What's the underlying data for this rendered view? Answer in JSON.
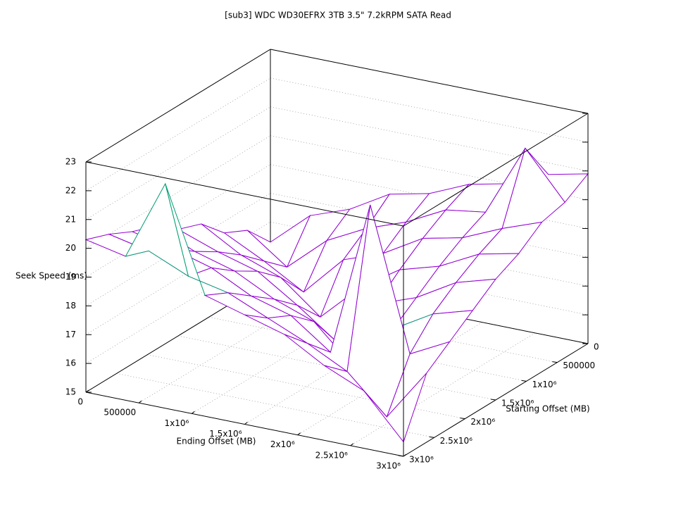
{
  "chart_data": {
    "type": "surface3d",
    "title": "[sub3] WDC WD30EFRX 3TB 3.5\" 7.2kRPM SATA Read",
    "xlabel": "Ending Offset (MB)",
    "ylabel": "Starting Offset (MB)",
    "zlabel": "Seek Speed (ms)",
    "x": [
      0,
      375000,
      750000,
      1125000,
      1500000,
      1875000,
      2250000,
      2625000,
      3000000
    ],
    "y": [
      0,
      375000,
      750000,
      1125000,
      1500000,
      1875000,
      2250000,
      2625000,
      3000000
    ],
    "z": [
      [
        16.3,
        17.5,
        18.0,
        18.8,
        19.1,
        19.7,
        20.0,
        20.6,
        20.9
      ],
      [
        17.2,
        16.2,
        17.4,
        18.1,
        18.6,
        19.3,
        19.5,
        22.0,
        20.4
      ],
      [
        17.6,
        16.9,
        16.1,
        17.5,
        18.0,
        18.8,
        19.1,
        19.7,
        20.2
      ],
      [
        18.4,
        17.6,
        17.1,
        16.0,
        17.3,
        18.2,
        18.6,
        19.3,
        19.6
      ],
      [
        18.7,
        18.2,
        17.8,
        16.9,
        15.9,
        17.5,
        18.0,
        18.8,
        19.2
      ],
      [
        19.3,
        18.7,
        18.3,
        17.6,
        17.1,
        15.8,
        17.4,
        18.2,
        18.6
      ],
      [
        19.6,
        19.3,
        18.9,
        18.2,
        17.8,
        16.8,
        22.2,
        17.3,
        18.0
      ],
      [
        20.0,
        19.7,
        19.1,
        18.8,
        18.2,
        17.6,
        16.9,
        15.6,
        17.4
      ],
      [
        20.3,
        20.0,
        22.8,
        19.2,
        18.8,
        18.4,
        17.6,
        17.0,
        15.5
      ]
    ],
    "top_color": "#9400d3",
    "bottom_color": "#009e73",
    "xlim": [
      0,
      3000000
    ],
    "ylim": [
      0,
      3000000
    ],
    "zlim": [
      15,
      23
    ],
    "xticks": [
      0,
      500000,
      {
        "value": 1000000,
        "label": "1x10⁶"
      },
      {
        "value": 1500000,
        "label": "1.5x10⁶"
      },
      {
        "value": 2000000,
        "label": "2x10⁶"
      },
      {
        "value": 2500000,
        "label": "2.5x10⁶"
      },
      {
        "value": 3000000,
        "label": "3x10⁶"
      }
    ],
    "yticks": [
      0,
      500000,
      {
        "value": 1000000,
        "label": "1x10⁶"
      },
      {
        "value": 1500000,
        "label": "1.5x10⁶"
      },
      {
        "value": 2000000,
        "label": "2x10⁶"
      },
      {
        "value": 2500000,
        "label": "2.5x10⁶"
      },
      {
        "value": 3000000,
        "label": "3x10⁶"
      }
    ],
    "zticks": [
      15,
      16,
      17,
      18,
      19,
      20,
      21,
      22,
      23
    ],
    "grid": true
  }
}
